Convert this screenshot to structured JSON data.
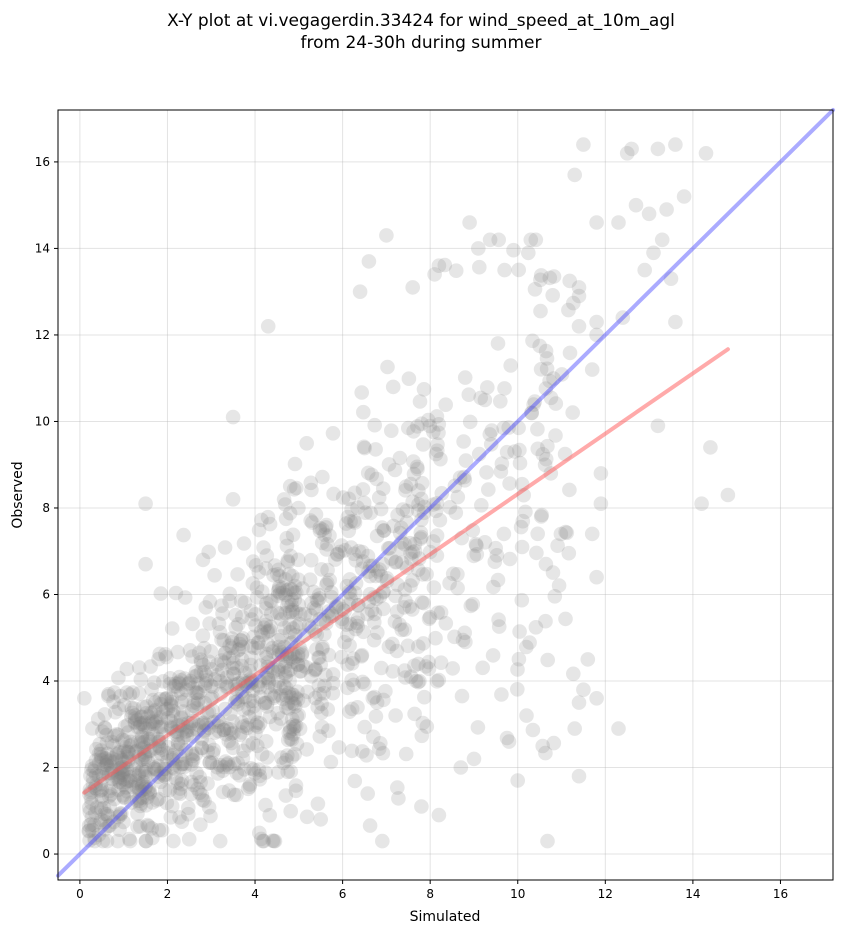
{
  "chart_data": {
    "type": "scatter",
    "title_lines": [
      "X-Y plot at vi.vegagerdin.33424 for wind_speed_at_10m_agl",
      "from 24-30h during summer"
    ],
    "xlabel": "Simulated",
    "ylabel": "Observed",
    "xlim": [
      -0.5,
      17.2
    ],
    "ylim": [
      -0.6,
      17.2
    ],
    "xticks": [
      0,
      2,
      4,
      6,
      8,
      10,
      12,
      14,
      16
    ],
    "yticks": [
      0,
      2,
      4,
      6,
      8,
      10,
      12,
      14,
      16
    ],
    "grid": true,
    "point_color": "#808080",
    "reference_line": {
      "color": "#4444ff",
      "x": [
        -0.5,
        17.2
      ],
      "y": [
        -0.5,
        17.2
      ]
    },
    "fit_line": {
      "color": "#ff5555",
      "x": [
        0.1,
        14.8
      ],
      "y": [
        1.42,
        11.67
      ]
    },
    "outlier_points": [
      [
        11.5,
        16.4
      ],
      [
        12.5,
        16.2
      ],
      [
        12.6,
        16.3
      ],
      [
        13.2,
        16.3
      ],
      [
        13.6,
        16.4
      ],
      [
        14.3,
        16.2
      ],
      [
        11.3,
        15.7
      ],
      [
        12.7,
        15.0
      ],
      [
        13.0,
        14.8
      ],
      [
        13.4,
        14.9
      ],
      [
        13.8,
        15.2
      ],
      [
        11.8,
        14.6
      ],
      [
        12.3,
        14.6
      ],
      [
        13.3,
        14.2
      ],
      [
        13.1,
        13.9
      ],
      [
        12.9,
        13.5
      ],
      [
        13.5,
        13.3
      ],
      [
        13.6,
        12.3
      ],
      [
        11.4,
        13.1
      ],
      [
        11.4,
        12.9
      ],
      [
        11.8,
        12.3
      ],
      [
        12.4,
        12.4
      ],
      [
        11.4,
        12.2
      ],
      [
        11.8,
        12.0
      ],
      [
        11.7,
        11.2
      ],
      [
        13.2,
        9.9
      ],
      [
        14.2,
        8.1
      ],
      [
        14.4,
        9.4
      ],
      [
        14.8,
        8.3
      ],
      [
        11.9,
        8.8
      ],
      [
        11.9,
        8.1
      ],
      [
        11.8,
        6.4
      ],
      [
        11.7,
        7.4
      ],
      [
        12.3,
        2.9
      ],
      [
        11.6,
        4.5
      ],
      [
        11.8,
        3.6
      ],
      [
        11.5,
        3.8
      ],
      [
        11.4,
        1.8
      ],
      [
        11.3,
        2.9
      ],
      [
        11.4,
        3.5
      ],
      [
        10.0,
        1.7
      ],
      [
        10.2,
        3.2
      ],
      [
        9.8,
        2.6
      ],
      [
        9.0,
        2.2
      ],
      [
        8.7,
        2.0
      ],
      [
        8.2,
        0.9
      ],
      [
        7.8,
        1.1
      ],
      [
        5.5,
        0.8
      ],
      [
        4.3,
        12.2
      ],
      [
        3.5,
        10.1
      ],
      [
        7.0,
        14.3
      ],
      [
        8.9,
        14.6
      ],
      [
        9.1,
        14.0
      ],
      [
        9.7,
        13.5
      ],
      [
        8.2,
        13.6
      ],
      [
        6.6,
        13.7
      ],
      [
        6.4,
        13.0
      ],
      [
        7.6,
        13.1
      ],
      [
        8.1,
        13.4
      ],
      [
        1.5,
        8.1
      ],
      [
        3.5,
        8.2
      ],
      [
        1.5,
        6.7
      ],
      [
        0.1,
        3.6
      ],
      [
        4.2,
        0.3
      ]
    ],
    "cluster_samples": 1380,
    "cluster_seed": 20240,
    "note": ""
  }
}
